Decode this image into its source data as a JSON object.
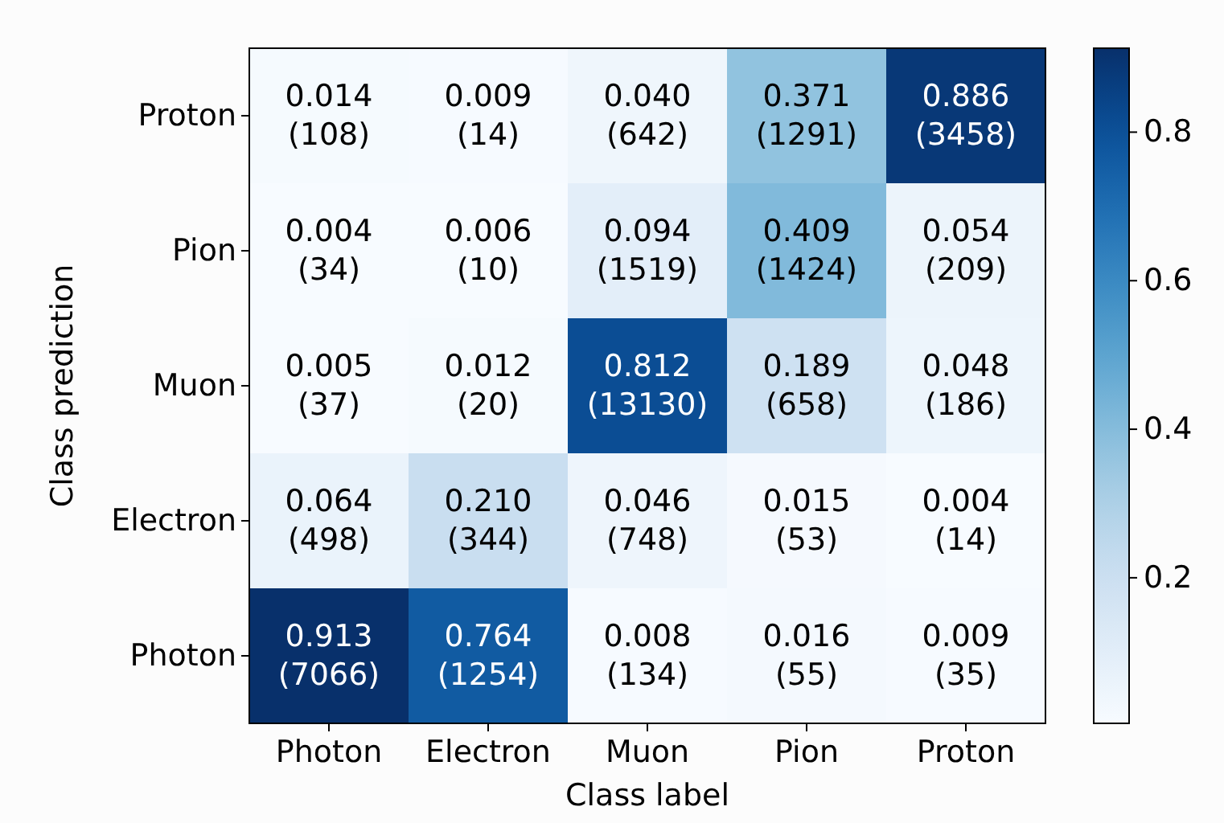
{
  "chart_data": {
    "type": "heatmap",
    "xlabel": "Class label",
    "ylabel": "Class prediction",
    "categories": [
      "Photon",
      "Electron",
      "Muon",
      "Pion",
      "Proton"
    ],
    "y_categories": [
      "Proton",
      "Pion",
      "Muon",
      "Electron",
      "Photon"
    ],
    "cells": [
      [
        0.014,
        0.009,
        0.04,
        0.371,
        0.886
      ],
      [
        0.004,
        0.006,
        0.094,
        0.409,
        0.054
      ],
      [
        0.005,
        0.012,
        0.812,
        0.189,
        0.048
      ],
      [
        0.064,
        0.21,
        0.046,
        0.015,
        0.004
      ],
      [
        0.913,
        0.764,
        0.008,
        0.016,
        0.009
      ]
    ],
    "cell_labels": [
      [
        "0.014\n(108)",
        "0.009\n(14)",
        "0.040\n(642)",
        "0.371\n(1291)",
        "0.886\n(3458)"
      ],
      [
        "0.004\n(34)",
        "0.006\n(10)",
        "0.094\n(1519)",
        "0.409\n(1424)",
        "0.054\n(209)"
      ],
      [
        "0.005\n(37)",
        "0.012\n(20)",
        "0.812\n(13130)",
        "0.189\n(658)",
        "0.048\n(186)"
      ],
      [
        "0.064\n(498)",
        "0.210\n(344)",
        "0.046\n(748)",
        "0.015\n(53)",
        "0.004\n(14)"
      ],
      [
        "0.913\n(7066)",
        "0.764\n(1254)",
        "0.008\n(134)",
        "0.016\n(55)",
        "0.009\n(35)"
      ]
    ],
    "clim": [
      0.004,
      0.913
    ],
    "cticks": [
      0.2,
      0.4,
      0.6,
      0.8
    ]
  }
}
